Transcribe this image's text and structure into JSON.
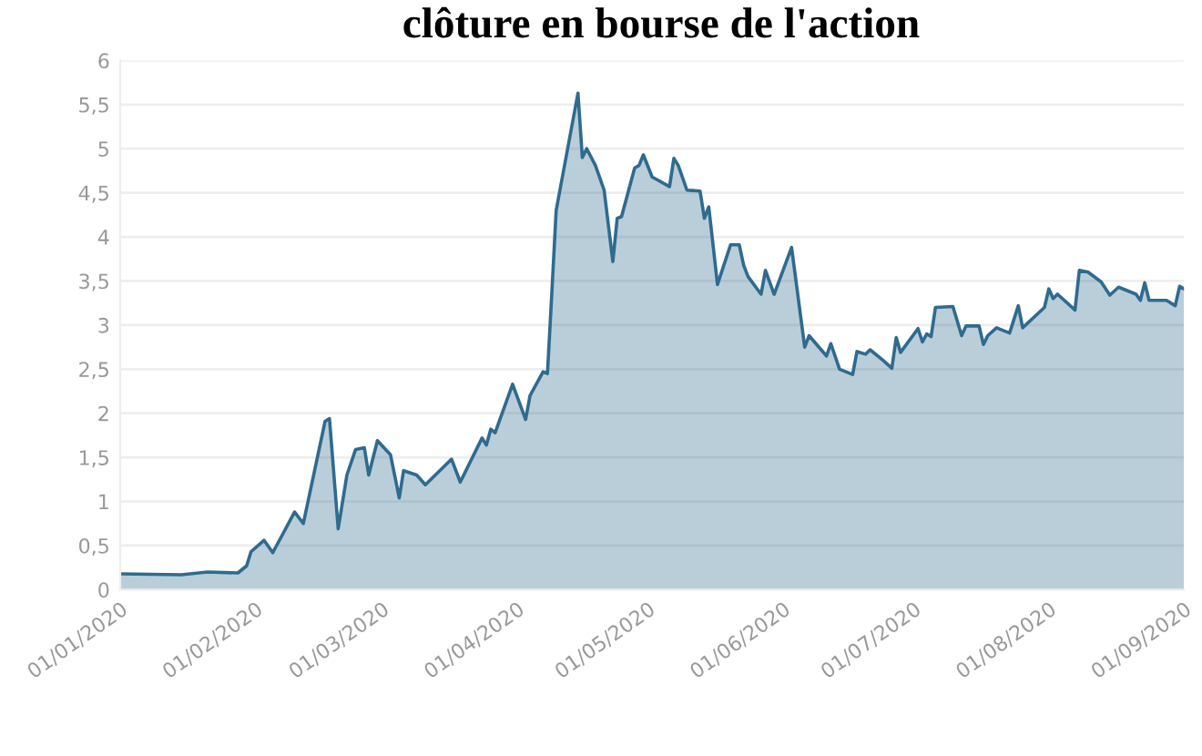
{
  "chart_data": {
    "type": "area",
    "title": "clôture en bourse de l'action",
    "x": [
      "2020-01-01",
      "2020-01-15",
      "2020-01-21",
      "2020-01-28",
      "2020-01-30",
      "2020-01-31",
      "2020-02-03",
      "2020-02-05",
      "2020-02-10",
      "2020-02-12",
      "2020-02-17",
      "2020-02-18",
      "2020-02-20",
      "2020-02-22",
      "2020-02-24",
      "2020-02-26",
      "2020-02-27",
      "2020-02-29",
      "2020-03-03",
      "2020-03-05",
      "2020-03-06",
      "2020-03-09",
      "2020-03-11",
      "2020-03-17",
      "2020-03-19",
      "2020-03-24",
      "2020-03-25",
      "2020-03-26",
      "2020-03-27",
      "2020-03-31",
      "2020-04-03",
      "2020-04-04",
      "2020-04-07",
      "2020-04-08",
      "2020-04-09",
      "2020-04-10",
      "2020-04-15",
      "2020-04-16",
      "2020-04-17",
      "2020-04-19",
      "2020-04-21",
      "2020-04-23",
      "2020-04-24",
      "2020-04-25",
      "2020-04-28",
      "2020-04-29",
      "2020-04-30",
      "2020-05-02",
      "2020-05-06",
      "2020-05-07",
      "2020-05-08",
      "2020-05-10",
      "2020-05-13",
      "2020-05-14",
      "2020-05-15",
      "2020-05-17",
      "2020-05-20",
      "2020-05-22",
      "2020-05-23",
      "2020-05-24",
      "2020-05-27",
      "2020-05-28",
      "2020-05-30",
      "2020-06-03",
      "2020-06-06",
      "2020-06-07",
      "2020-06-11",
      "2020-06-12",
      "2020-06-14",
      "2020-06-17",
      "2020-06-18",
      "2020-06-20",
      "2020-06-21",
      "2020-06-24",
      "2020-06-26",
      "2020-06-27",
      "2020-06-28",
      "2020-07-02",
      "2020-07-03",
      "2020-07-04",
      "2020-07-05",
      "2020-07-06",
      "2020-07-10",
      "2020-07-12",
      "2020-07-13",
      "2020-07-16",
      "2020-07-17",
      "2020-07-18",
      "2020-07-20",
      "2020-07-23",
      "2020-07-25",
      "2020-07-26",
      "2020-07-31",
      "2020-08-01",
      "2020-08-02",
      "2020-08-03",
      "2020-08-07",
      "2020-08-08",
      "2020-08-10",
      "2020-08-13",
      "2020-08-15",
      "2020-08-17",
      "2020-08-21",
      "2020-08-22",
      "2020-08-23",
      "2020-08-24",
      "2020-08-28",
      "2020-08-30",
      "2020-08-31",
      "2020-09-01"
    ],
    "series": [
      {
        "color": "#2e6b8f",
        "values": [
          0.18,
          0.17,
          0.2,
          0.19,
          0.27,
          0.43,
          0.56,
          0.42,
          0.88,
          0.75,
          1.91,
          1.94,
          0.69,
          1.3,
          1.59,
          1.61,
          1.3,
          1.69,
          1.53,
          1.04,
          1.35,
          1.3,
          1.19,
          1.48,
          1.22,
          1.72,
          1.64,
          1.82,
          1.78,
          2.33,
          1.93,
          2.2,
          2.47,
          2.45,
          3.36,
          4.3,
          5.63,
          4.9,
          5.0,
          4.81,
          4.53,
          3.72,
          4.21,
          4.23,
          4.78,
          4.81,
          4.93,
          4.68,
          4.57,
          4.89,
          4.81,
          4.53,
          4.52,
          4.21,
          4.34,
          3.46,
          3.91,
          3.91,
          3.68,
          3.55,
          3.35,
          3.62,
          3.35,
          3.88,
          2.75,
          2.88,
          2.65,
          2.79,
          2.5,
          2.44,
          2.7,
          2.67,
          2.72,
          2.6,
          2.51,
          2.86,
          2.69,
          2.96,
          2.81,
          2.9,
          2.87,
          3.2,
          3.21,
          2.88,
          2.99,
          2.99,
          2.78,
          2.88,
          2.97,
          2.91,
          3.22,
          2.97,
          3.2,
          3.41,
          3.3,
          3.35,
          3.17,
          3.62,
          3.6,
          3.49,
          3.34,
          3.43,
          3.35,
          3.28,
          3.48,
          3.28,
          3.28,
          3.22,
          3.44,
          3.41
        ]
      }
    ],
    "xlim": [
      "2020-01-01",
      "2020-09-01"
    ],
    "xticks": [
      {
        "value": "2020-01-01",
        "label": "01/01/2020"
      },
      {
        "value": "2020-02-01",
        "label": "01/02/2020"
      },
      {
        "value": "2020-03-01",
        "label": "01/03/2020"
      },
      {
        "value": "2020-04-01",
        "label": "01/04/2020"
      },
      {
        "value": "2020-05-01",
        "label": "01/05/2020"
      },
      {
        "value": "2020-06-01",
        "label": "01/06/2020"
      },
      {
        "value": "2020-07-01",
        "label": "01/07/2020"
      },
      {
        "value": "2020-08-01",
        "label": "01/08/2020"
      },
      {
        "value": "2020-09-01",
        "label": "01/09/2020"
      }
    ],
    "ylim": [
      0,
      6
    ],
    "yticks": [
      0,
      {
        "value": 0.5,
        "label": "0,5"
      },
      1,
      {
        "value": 1.5,
        "label": "1,5"
      },
      2,
      {
        "value": 2.5,
        "label": "2,5"
      },
      3,
      {
        "value": 3.5,
        "label": "3,5"
      },
      4,
      {
        "value": 4.5,
        "label": "4,5"
      },
      5,
      {
        "value": 5.5,
        "label": "5,5"
      },
      6
    ],
    "grid": "y",
    "marker": "none",
    "line_style": "solid"
  }
}
